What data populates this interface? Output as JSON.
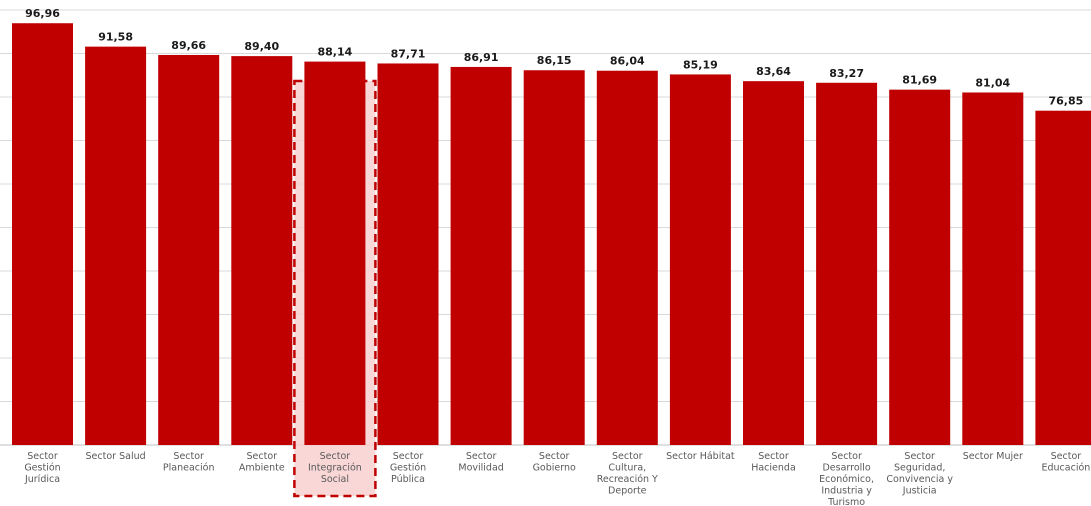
{
  "chart_data": {
    "type": "bar",
    "title": "",
    "xlabel": "",
    "ylabel": "",
    "ylim": [
      0,
      100
    ],
    "grid": true,
    "legend": "none",
    "categories": [
      [
        "Sector",
        "Gestión",
        "Jurídica"
      ],
      [
        "Sector Salud"
      ],
      [
        "Sector",
        "Planeación"
      ],
      [
        "Sector",
        "Ambiente"
      ],
      [
        "Sector",
        "Integración",
        "Social"
      ],
      [
        "Sector",
        "Gestión",
        "Pública"
      ],
      [
        "Sector",
        "Movilidad"
      ],
      [
        "Sector",
        "Gobierno"
      ],
      [
        "Sector",
        "Cultura,",
        "Recreación Y",
        "Deporte"
      ],
      [
        "Sector Hábitat"
      ],
      [
        "Sector",
        "Hacienda"
      ],
      [
        "Sector",
        "Desarrollo",
        "Económico,",
        "Industria y",
        "Turismo"
      ],
      [
        "Sector",
        "Seguridad,",
        "Convivencia y",
        "Justicia"
      ],
      [
        "Sector Mujer"
      ],
      [
        "Sector",
        "Educación"
      ]
    ],
    "values": [
      96.96,
      91.58,
      89.66,
      89.4,
      88.14,
      87.71,
      86.91,
      86.15,
      86.04,
      85.19,
      83.64,
      83.27,
      81.69,
      81.04,
      76.85
    ],
    "value_labels": [
      "96,96",
      "91,58",
      "89,66",
      "89,40",
      "88,14",
      "87,71",
      "86,91",
      "86,15",
      "86,04",
      "85,19",
      "83,64",
      "83,27",
      "81,69",
      "81,04",
      "76,85"
    ],
    "highlighted_category_index": 4,
    "colors": {
      "bar": "#c00000",
      "highlight_fill": "#f8d0d0",
      "highlight_border": "#c00000",
      "grid": "#d9d9d9",
      "axis": "#bfbfbf"
    }
  }
}
